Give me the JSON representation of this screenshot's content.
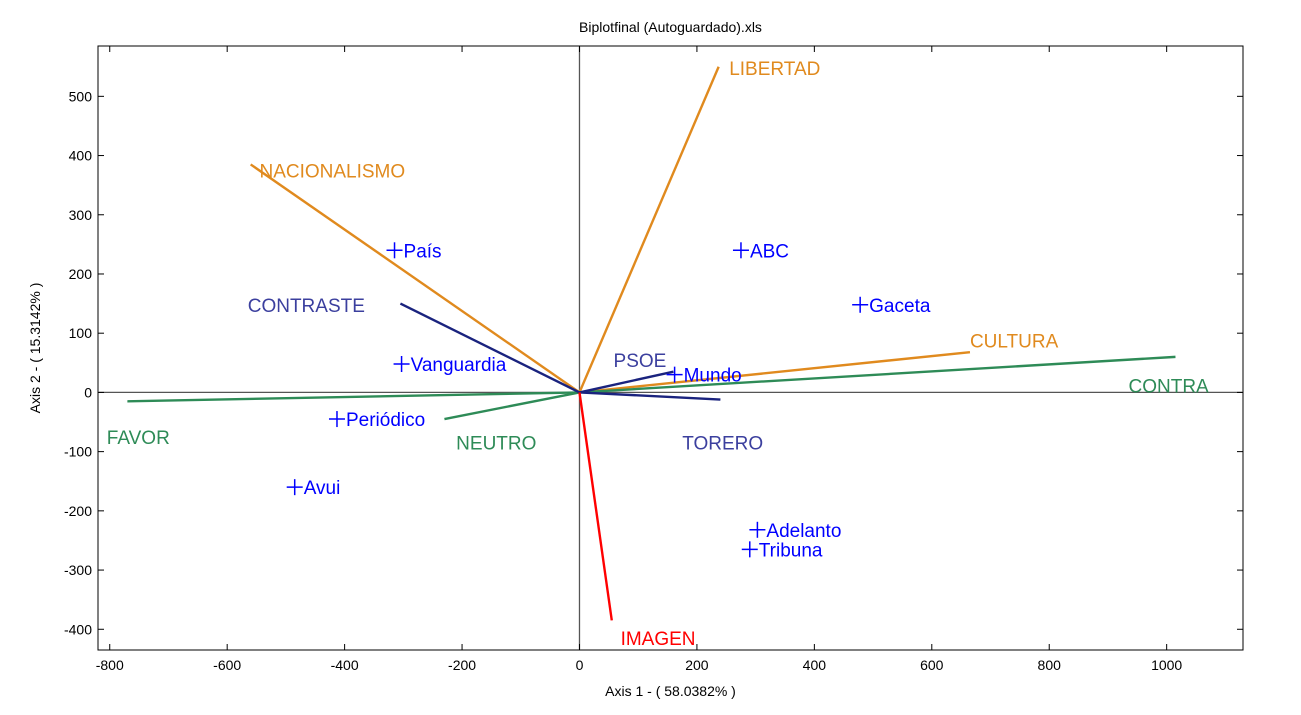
{
  "chart_data": {
    "type": "scatter",
    "title": "Biplotfinal (Autoguardado).xls",
    "xlabel": "Axis 1 - ( 58.0382% )",
    "ylabel": "Axis 2 - ( 15.3142% )",
    "xlim": [
      -820,
      1130
    ],
    "ylim": [
      -435,
      585
    ],
    "xticks": [
      -800,
      -600,
      -400,
      -200,
      0,
      200,
      400,
      600,
      800,
      1000
    ],
    "yticks": [
      -400,
      -300,
      -200,
      -100,
      0,
      100,
      200,
      300,
      400,
      500
    ],
    "grid": false,
    "colors": {
      "points": "#0000ff",
      "orange": "#e08a1e",
      "green": "#2e8b57",
      "navy": "#1a237e",
      "red": "#ff0000",
      "navy_label": "#3b3f9e"
    },
    "points": [
      {
        "label": "País",
        "x": -315,
        "y": 240
      },
      {
        "label": "ABC",
        "x": 275,
        "y": 240
      },
      {
        "label": "Gaceta",
        "x": 478,
        "y": 148
      },
      {
        "label": "Vanguardia",
        "x": -303,
        "y": 48
      },
      {
        "label": "Mundo",
        "x": 162,
        "y": 30
      },
      {
        "label": "Periódico",
        "x": -413,
        "y": -45
      },
      {
        "label": "Avui",
        "x": -485,
        "y": -160
      },
      {
        "label": "Adelanto",
        "x": 303,
        "y": -232
      },
      {
        "label": "Tribuna",
        "x": 290,
        "y": -265
      }
    ],
    "vectors": [
      {
        "label": "LIBERTAD",
        "x": 237,
        "y": 550,
        "color": "orange",
        "lx": 255,
        "ly": 548
      },
      {
        "label": "NACIONALISMO",
        "x": -560,
        "y": 385,
        "color": "orange",
        "lx": -545,
        "ly": 375
      },
      {
        "label": "CULTURA",
        "x": 665,
        "y": 68,
        "color": "orange",
        "lx": 665,
        "ly": 88
      },
      {
        "label": "CONTRA",
        "x": 1015,
        "y": 60,
        "color": "green",
        "lx": 935,
        "ly": 12
      },
      {
        "label": "FAVOR",
        "x": -770,
        "y": -15,
        "color": "green",
        "lx": -805,
        "ly": -75
      },
      {
        "label": "NEUTRO",
        "x": -230,
        "y": -45,
        "color": "green",
        "lx": -210,
        "ly": -85
      },
      {
        "label": "CONTRASTE",
        "x": -305,
        "y": 150,
        "color": "navy",
        "lx": -565,
        "ly": 148,
        "label_color": "navy_label"
      },
      {
        "label": "PSOE",
        "x": 160,
        "y": 35,
        "color": "navy",
        "lx": 58,
        "ly": 55,
        "label_color": "navy_label"
      },
      {
        "label": "TORERO",
        "x": 240,
        "y": -12,
        "color": "navy",
        "lx": 175,
        "ly": -85,
        "label_color": "navy_label"
      },
      {
        "label": "IMAGEN",
        "x": 55,
        "y": -385,
        "color": "red",
        "lx": 70,
        "ly": -415
      }
    ]
  }
}
